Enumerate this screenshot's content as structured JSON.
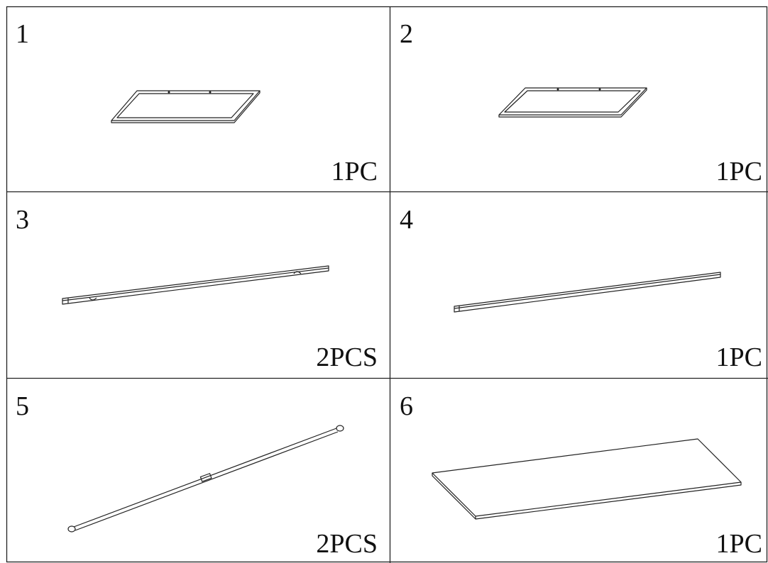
{
  "parts": [
    {
      "number": "1",
      "quantity": "1PC"
    },
    {
      "number": "2",
      "quantity": "1PC"
    },
    {
      "number": "3",
      "quantity": "2PCS"
    },
    {
      "number": "4",
      "quantity": "1PC"
    },
    {
      "number": "5",
      "quantity": "2PCS"
    },
    {
      "number": "6",
      "quantity": "1PC"
    }
  ]
}
